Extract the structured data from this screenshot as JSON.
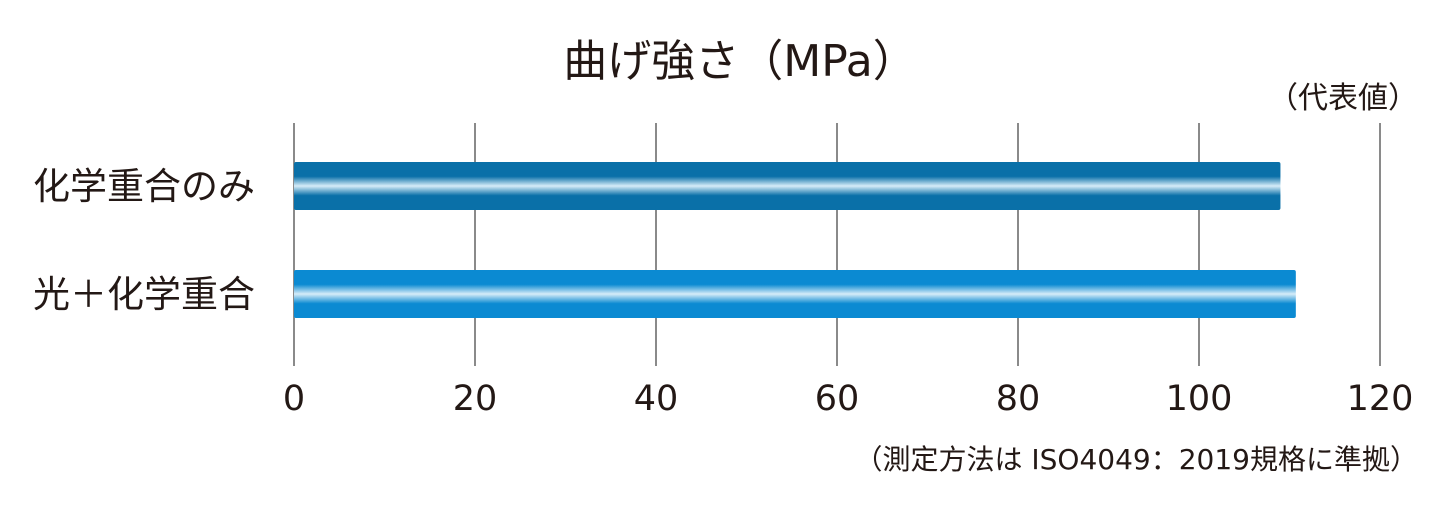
{
  "chart_data": {
    "type": "bar",
    "orientation": "horizontal",
    "title": "曲げ強さ（MPa）",
    "subtitle": "（代表値）",
    "footnote": "（測定方法は ISO4049：2019規格に準拠）",
    "categories": [
      "化学重合のみ",
      "光＋化学重合"
    ],
    "values": [
      109,
      110.7
    ],
    "tick_labels": [
      "0",
      "20",
      "40",
      "60",
      "80",
      "100",
      "120"
    ],
    "xlim": [
      0,
      120
    ],
    "x_ticks": [
      0,
      20,
      40,
      60,
      80,
      100,
      120
    ],
    "grid": true,
    "xlabel": "",
    "ylabel": "",
    "colors": [
      "#0a70a8",
      "#0b8ad2"
    ]
  }
}
